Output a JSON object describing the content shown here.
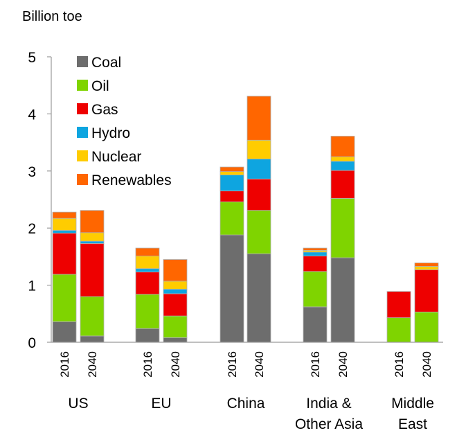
{
  "chart_data": {
    "type": "bar",
    "stacked": true,
    "unit_label": "Billion toe",
    "ylim": [
      0,
      5
    ],
    "yticks": [
      0,
      1,
      2,
      3,
      4,
      5
    ],
    "grid": false,
    "legend_position": "top-left",
    "groups": [
      {
        "label": [
          "US"
        ],
        "years": [
          "2016",
          "2040"
        ]
      },
      {
        "label": [
          "EU"
        ],
        "years": [
          "2016",
          "2040"
        ]
      },
      {
        "label": [
          "China"
        ],
        "years": [
          "2016",
          "2040"
        ]
      },
      {
        "label": [
          "India &",
          "Other Asia"
        ],
        "years": [
          "2016",
          "2040"
        ]
      },
      {
        "label": [
          "Middle",
          "East"
        ],
        "years": [
          "2016",
          "2040"
        ]
      }
    ],
    "categories": [
      "US 2016",
      "US 2040",
      "EU 2016",
      "EU 2040",
      "China 2016",
      "China 2040",
      "India & Other Asia 2016",
      "India & Other Asia 2040",
      "Middle East 2016",
      "Middle East 2040"
    ],
    "series": [
      {
        "name": "Coal",
        "color": "#6d6d6d",
        "values": [
          0.36,
          0.11,
          0.24,
          0.08,
          1.88,
          1.55,
          0.62,
          1.48,
          0.0,
          0.0
        ]
      },
      {
        "name": "Oil",
        "color": "#7fd400",
        "values": [
          0.83,
          0.69,
          0.6,
          0.38,
          0.58,
          0.76,
          0.62,
          1.04,
          0.43,
          0.53
        ]
      },
      {
        "name": "Gas",
        "color": "#ee0000",
        "values": [
          0.72,
          0.93,
          0.39,
          0.39,
          0.19,
          0.55,
          0.27,
          0.49,
          0.46,
          0.74
        ]
      },
      {
        "name": "Hydro",
        "color": "#0ea5e0",
        "values": [
          0.05,
          0.04,
          0.06,
          0.08,
          0.28,
          0.35,
          0.07,
          0.16,
          0.0,
          0.0
        ]
      },
      {
        "name": "Nuclear",
        "color": "#ffcc00",
        "values": [
          0.21,
          0.15,
          0.22,
          0.14,
          0.06,
          0.33,
          0.03,
          0.08,
          0.0,
          0.06
        ]
      },
      {
        "name": "Renewables",
        "color": "#ff6600",
        "values": [
          0.11,
          0.39,
          0.14,
          0.38,
          0.08,
          0.77,
          0.04,
          0.36,
          0.0,
          0.06
        ]
      }
    ]
  }
}
